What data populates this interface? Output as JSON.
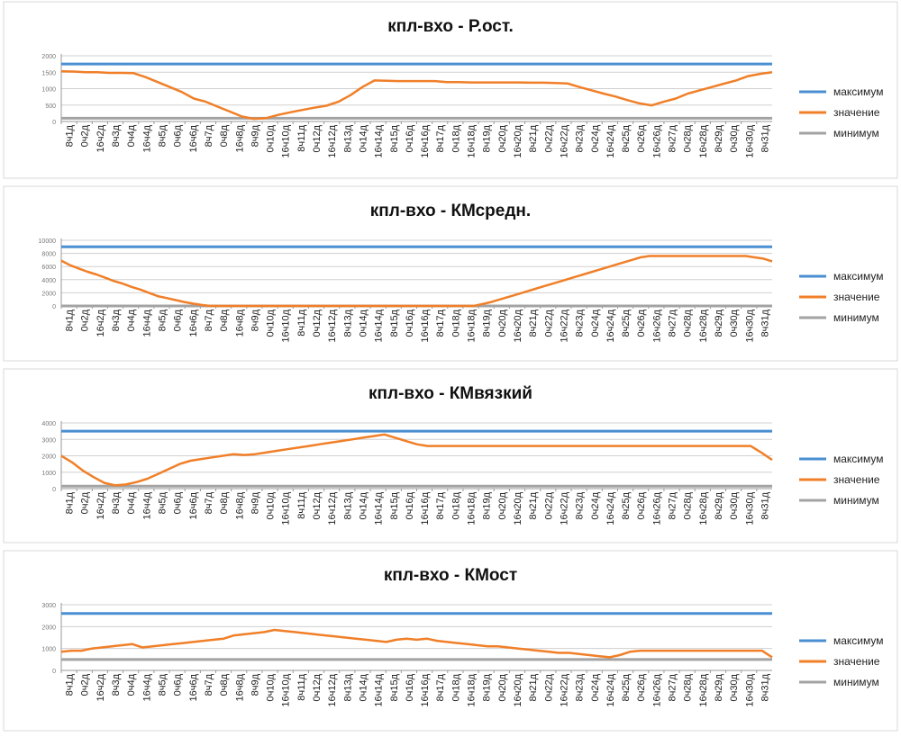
{
  "legend": {
    "max_label": "максимум",
    "value_label": "значение",
    "min_label": "минимум",
    "colors": {
      "max": "#4a8fd1",
      "value": "#f07f28",
      "min": "#a3a3a3"
    }
  },
  "x_labels": [
    "8ч1д",
    "0ч2д",
    "16ч2д",
    "8ч3д",
    "0ч4д",
    "16ч4д",
    "8ч5д",
    "0ч6д",
    "16ч6д",
    "8ч7д",
    "0ч8д",
    "16ч8д",
    "8ч9д",
    "0ч10д",
    "16ч10д",
    "8ч11д",
    "0ч12д",
    "16ч12д",
    "8ч13д",
    "0ч14д",
    "16ч14д",
    "8ч15д",
    "0ч16д",
    "16ч16д",
    "8ч17д",
    "0ч18д",
    "16ч18д",
    "8ч19д",
    "0ч20д",
    "16ч20д",
    "8ч21д",
    "0ч22д",
    "16ч22д",
    "8ч23д",
    "0ч24д",
    "16ч24д",
    "8ч25д",
    "0ч26д",
    "16ч26д",
    "8ч27д",
    "0ч28д",
    "16ч28д",
    "8ч29д",
    "0ч30д",
    "16ч30д",
    "8ч31д"
  ],
  "chart_data": [
    {
      "type": "line",
      "title": "кпл-вхо - Р.ост.",
      "ylim": [
        0,
        2000
      ],
      "y_ticks": [
        0,
        500,
        1000,
        1500,
        2000
      ],
      "series": [
        {
          "name": "максимум",
          "values": [
            1750
          ]
        },
        {
          "name": "значение",
          "values": [
            1530,
            1520,
            1500,
            1500,
            1480,
            1480,
            1470,
            1350,
            1200,
            1050,
            900,
            700,
            600,
            450,
            300,
            150,
            80,
            100,
            200,
            280,
            350,
            420,
            480,
            600,
            800,
            1050,
            1250,
            1240,
            1230,
            1230,
            1230,
            1230,
            1200,
            1200,
            1190,
            1190,
            1190,
            1190,
            1190,
            1180,
            1180,
            1170,
            1160,
            1050,
            950,
            850,
            760,
            650,
            550,
            490,
            600,
            700,
            850,
            950,
            1050,
            1150,
            1250,
            1380,
            1450,
            1500
          ]
        },
        {
          "name": "минимум",
          "values": [
            100
          ]
        }
      ]
    },
    {
      "type": "line",
      "title": "кпл-вхо - КМсредн.",
      "ylim": [
        0,
        10000
      ],
      "y_ticks": [
        0,
        2000,
        4000,
        6000,
        8000,
        10000
      ],
      "series": [
        {
          "name": "максимум",
          "values": [
            9000
          ]
        },
        {
          "name": "значение",
          "values": [
            6900,
            6200,
            5700,
            5200,
            4800,
            4300,
            3800,
            3400,
            2900,
            2500,
            2000,
            1500,
            1200,
            900,
            600,
            350,
            150,
            0,
            0,
            0,
            0,
            0,
            0,
            0,
            0,
            0,
            0,
            0,
            0,
            0,
            0,
            0,
            0,
            0,
            0,
            0,
            0,
            0,
            0,
            0,
            0,
            0,
            0,
            0,
            0,
            0,
            0,
            0,
            300,
            600,
            1000,
            1400,
            1800,
            2200,
            2600,
            3000,
            3400,
            3800,
            4200,
            4600,
            5000,
            5400,
            5800,
            6200,
            6600,
            7000,
            7400,
            7600,
            7600,
            7600,
            7600,
            7600,
            7600,
            7600,
            7600,
            7600,
            7600,
            7600,
            7600,
            7400,
            7200,
            6800
          ]
        },
        {
          "name": "минимум",
          "values": [
            0
          ]
        }
      ]
    },
    {
      "type": "line",
      "title": "кпл-вхо - КМвязкий",
      "ylim": [
        0,
        4000
      ],
      "y_ticks": [
        0,
        1000,
        2000,
        3000,
        4000
      ],
      "series": [
        {
          "name": "максимум",
          "values": [
            3500
          ]
        },
        {
          "name": "значение",
          "values": [
            2000,
            1600,
            1100,
            700,
            350,
            200,
            250,
            400,
            600,
            900,
            1200,
            1500,
            1700,
            1800,
            1900,
            2000,
            2100,
            2050,
            2100,
            2200,
            2300,
            2400,
            2500,
            2600,
            2700,
            2800,
            2900,
            3000,
            3100,
            3200,
            3300,
            3100,
            2900,
            2700,
            2600,
            2600,
            2600,
            2600,
            2600,
            2600,
            2600,
            2600,
            2600,
            2600,
            2600,
            2600,
            2600,
            2600,
            2600,
            2600,
            2600,
            2600,
            2600,
            2600,
            2600,
            2600,
            2600,
            2600,
            2600,
            2600,
            2600,
            2600,
            2600,
            2600,
            2600,
            2200,
            1750
          ]
        },
        {
          "name": "минимум",
          "values": [
            150
          ]
        }
      ]
    },
    {
      "type": "line",
      "title": "кпл-вхо - КМост",
      "ylim": [
        0,
        3000
      ],
      "y_ticks": [
        0,
        1000,
        2000,
        3000
      ],
      "series": [
        {
          "name": "максимум",
          "values": [
            2600
          ]
        },
        {
          "name": "значение",
          "values": [
            850,
            900,
            900,
            1000,
            1050,
            1100,
            1150,
            1200,
            1050,
            1100,
            1150,
            1200,
            1250,
            1300,
            1350,
            1400,
            1450,
            1600,
            1650,
            1700,
            1750,
            1850,
            1800,
            1750,
            1700,
            1650,
            1600,
            1550,
            1500,
            1450,
            1400,
            1350,
            1300,
            1400,
            1450,
            1400,
            1450,
            1350,
            1300,
            1250,
            1200,
            1150,
            1100,
            1100,
            1050,
            1000,
            950,
            900,
            850,
            800,
            800,
            750,
            700,
            650,
            600,
            700,
            850,
            900,
            900,
            900,
            900,
            900,
            900,
            900,
            900,
            900,
            900,
            900,
            900,
            900,
            600
          ]
        },
        {
          "name": "минимум",
          "values": [
            500
          ]
        }
      ]
    }
  ]
}
